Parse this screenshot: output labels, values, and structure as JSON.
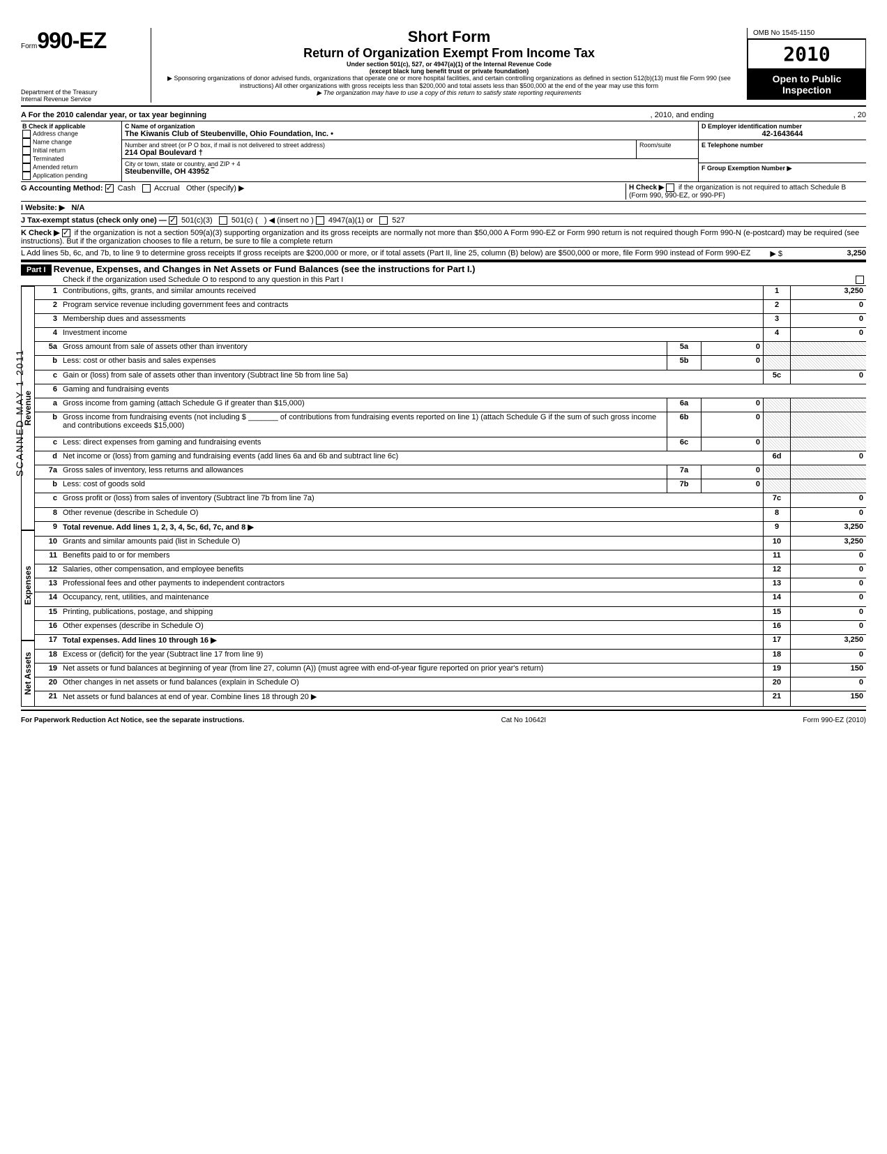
{
  "form": {
    "prefix": "Form",
    "number": "990-EZ",
    "dept1": "Department of the Treasury",
    "dept2": "Internal Revenue Service",
    "title_short": "Short Form",
    "title_main": "Return of Organization Exempt From Income Tax",
    "subtitle1": "Under section 501(c), 527, or 4947(a)(1) of the Internal Revenue Code",
    "subtitle2": "(except black lung benefit trust or private foundation)",
    "note1": "▶ Sponsoring organizations of donor advised funds, organizations that operate one or more hospital facilities, and certain controlling organizations as defined in section 512(b)(13) must file Form 990 (see instructions) All other organizations with gross receipts less than $200,000 and total assets less than $500,000 at the end of the year may use this form",
    "note2": "▶ The organization may have to use a copy of this return to satisfy state reporting requirements",
    "omb": "OMB No 1545-1150",
    "year": "2010",
    "open": "Open to Public Inspection"
  },
  "header": {
    "A": "A  For the 2010 calendar year, or tax year beginning",
    "A_mid": ", 2010, and ending",
    "A_end": ", 20",
    "B": "B  Check if applicable",
    "B_items": [
      "Address change",
      "Name change",
      "Initial return",
      "Terminated",
      "Amended return",
      "Application pending"
    ],
    "C": "C  Name of organization",
    "org_name": "The Kiwanis Club of Steubenville, Ohio Foundation, Inc. •",
    "addr_label": "Number and street (or P O box, if mail is not delivered to street address)",
    "addr": "214 Opal Boulevard  †",
    "room": "Room/suite",
    "city_label": "City or town, state or country, and ZIP + 4",
    "city": "Steubenville, OH 43952  ‾",
    "D": "D Employer identification number",
    "ein": "42-1643644",
    "E": "E  Telephone number",
    "F": "F  Group Exemption Number ▶",
    "G": "G  Accounting Method:",
    "G_cash": "Cash",
    "G_accrual": "Accrual",
    "G_other": "Other (specify) ▶",
    "H": "H  Check ▶",
    "H_text": "if the organization is not required to attach Schedule B (Form 990, 990-EZ, or 990-PF)",
    "I": "I   Website: ▶",
    "website": "N/A",
    "J": "J  Tax-exempt status (check only one) —",
    "J_501c3": "501(c)(3)",
    "J_501c": "501(c) (",
    "J_insert": ") ◀ (insert no )",
    "J_4947": "4947(a)(1) or",
    "J_527": "527",
    "K": "K  Check ▶",
    "K_text": "if the organization is not a section 509(a)(3) supporting organization and its gross receipts are normally not more than $50,000  A Form 990-EZ or Form 990 return is not required though Form 990-N (e-postcard) may be required (see instructions). But if the organization chooses to file a return, be sure to file a complete return",
    "L": "L  Add lines 5b, 6c, and 7b, to line 9 to determine gross receipts  If gross receipts are $200,000 or more, or if total assets (Part II, line  25, column (B) below) are $500,000 or more, file Form 990 instead of Form 990-EZ",
    "L_amt": "3,250",
    "L_arrow": "▶  $"
  },
  "part1": {
    "label": "Part I",
    "title": "Revenue, Expenses, and Changes in Net Assets or Fund Balances (see the instructions for Part I.)",
    "check": "Check if the organization used Schedule O to respond to any question in this Part I"
  },
  "sections": {
    "revenue": "Revenue",
    "expenses": "Expenses",
    "netassets": "Net Assets"
  },
  "lines": [
    {
      "n": "1",
      "t": "Contributions, gifts, grants, and similar amounts received",
      "c": "1",
      "v": "3,250"
    },
    {
      "n": "2",
      "t": "Program service revenue including government fees and contracts",
      "c": "2",
      "v": "0"
    },
    {
      "n": "3",
      "t": "Membership dues and assessments",
      "c": "3",
      "v": "0"
    },
    {
      "n": "4",
      "t": "Investment income",
      "c": "4",
      "v": "0"
    },
    {
      "n": "5a",
      "t": "Gross amount from sale of assets other than inventory",
      "sc": "5a",
      "sv": "0"
    },
    {
      "n": "b",
      "t": "Less: cost or other basis and sales expenses",
      "sc": "5b",
      "sv": "0"
    },
    {
      "n": "c",
      "t": "Gain or (loss) from sale of assets other than inventory (Subtract line 5b from line 5a)",
      "c": "5c",
      "v": "0"
    },
    {
      "n": "6",
      "t": "Gaming and fundraising events"
    },
    {
      "n": "a",
      "t": "Gross income from gaming (attach Schedule G if greater than $15,000)",
      "sc": "6a",
      "sv": "0"
    },
    {
      "n": "b",
      "t": "Gross income from fundraising events (not including $ _______ of contributions from fundraising events reported on line 1) (attach Schedule G if the sum of such gross income and contributions exceeds $15,000)",
      "sc": "6b",
      "sv": "0"
    },
    {
      "n": "c",
      "t": "Less: direct expenses from gaming and fundraising events",
      "sc": "6c",
      "sv": "0"
    },
    {
      "n": "d",
      "t": "Net income or (loss) from gaming and fundraising events (add lines 6a and 6b and subtract line 6c)",
      "c": "6d",
      "v": "0"
    },
    {
      "n": "7a",
      "t": "Gross sales of inventory, less returns and allowances",
      "sc": "7a",
      "sv": "0"
    },
    {
      "n": "b",
      "t": "Less: cost of goods sold",
      "sc": "7b",
      "sv": "0"
    },
    {
      "n": "c",
      "t": "Gross profit or (loss) from sales of inventory (Subtract line 7b from line 7a)",
      "c": "7c",
      "v": "0"
    },
    {
      "n": "8",
      "t": "Other revenue (describe in Schedule O)",
      "c": "8",
      "v": "0"
    },
    {
      "n": "9",
      "t": "Total revenue. Add lines 1, 2, 3, 4, 5c, 6d, 7c, and 8",
      "c": "9",
      "v": "3,250",
      "arrow": true,
      "bold": true
    },
    {
      "n": "10",
      "t": "Grants and similar amounts paid (list in Schedule O)",
      "c": "10",
      "v": "3,250"
    },
    {
      "n": "11",
      "t": "Benefits paid to or for members",
      "c": "11",
      "v": "0"
    },
    {
      "n": "12",
      "t": "Salaries, other compensation, and employee benefits",
      "c": "12",
      "v": "0"
    },
    {
      "n": "13",
      "t": "Professional fees and other payments to independent contractors",
      "c": "13",
      "v": "0"
    },
    {
      "n": "14",
      "t": "Occupancy, rent, utilities, and maintenance",
      "c": "14",
      "v": "0"
    },
    {
      "n": "15",
      "t": "Printing, publications, postage, and shipping",
      "c": "15",
      "v": "0"
    },
    {
      "n": "16",
      "t": "Other expenses (describe in Schedule O)",
      "c": "16",
      "v": "0"
    },
    {
      "n": "17",
      "t": "Total expenses. Add lines 10 through 16",
      "c": "17",
      "v": "3,250",
      "arrow": true,
      "bold": true
    },
    {
      "n": "18",
      "t": "Excess or (deficit) for the year (Subtract line 17 from line 9)",
      "c": "18",
      "v": "0"
    },
    {
      "n": "19",
      "t": "Net assets or fund balances at beginning of year (from line 27, column (A)) (must agree with end-of-year figure reported on prior year's return)",
      "c": "19",
      "v": "150"
    },
    {
      "n": "20",
      "t": "Other changes in net assets or fund balances (explain in Schedule O)",
      "c": "20",
      "v": "0"
    },
    {
      "n": "21",
      "t": "Net assets or fund balances at end of year. Combine lines 18 through 20",
      "c": "21",
      "v": "150",
      "arrow": true
    }
  ],
  "footer": {
    "left": "For Paperwork Reduction Act Notice, see the separate instructions.",
    "mid": "Cat No 10642I",
    "right": "Form 990-EZ (2010)"
  },
  "stamp": "SCANNED MAY 1 2011"
}
